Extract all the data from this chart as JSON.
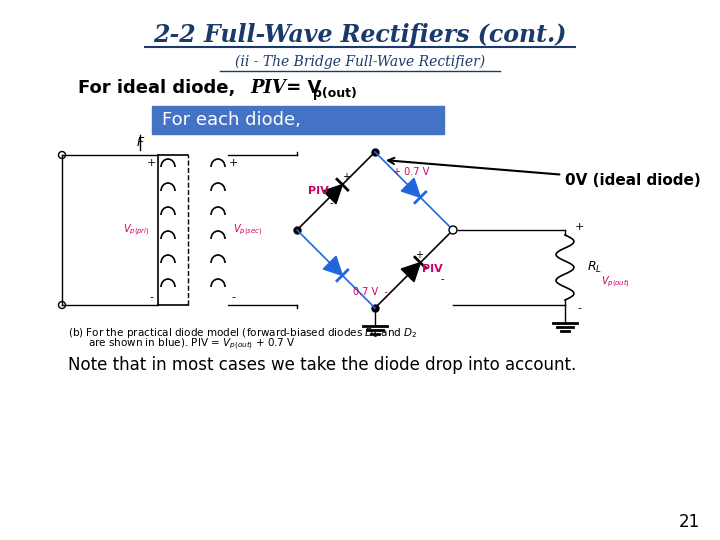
{
  "title": "2-2 Full-Wave Rectifiers (cont.)",
  "subtitle": "(ii - The Bridge Full-Wave Rectifier)",
  "title_color": "#1a3a6b",
  "subtitle_color": "#1a3a6b",
  "highlight_text": "For each diode,",
  "highlight_bg": "#4472c4",
  "highlight_text_color": "#ffffff",
  "annotation_text": "0V (ideal diode)",
  "note_text": "Note that in most cases we take the diode drop into account.",
  "page_number": "21",
  "bg_color": "#ffffff"
}
